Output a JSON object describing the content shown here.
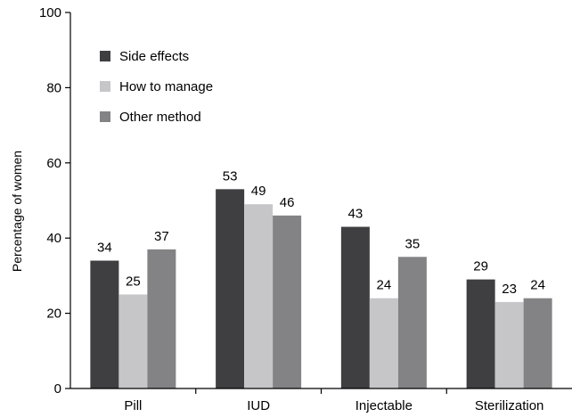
{
  "chart_data": {
    "type": "bar",
    "title": "",
    "xlabel": "",
    "ylabel": "Percentage of women",
    "ylim": [
      0,
      100
    ],
    "yticks": [
      0,
      20,
      40,
      60,
      80,
      100
    ],
    "grid": false,
    "legend_position": "top-left",
    "categories": [
      "Pill",
      "IUD",
      "Injectable",
      "Sterilization"
    ],
    "series": [
      {
        "name": "Side effects",
        "color": "#3f3f42",
        "values": [
          34,
          53,
          43,
          29
        ]
      },
      {
        "name": "How to manage",
        "color": "#c6c6c8",
        "values": [
          25,
          49,
          24,
          23
        ]
      },
      {
        "name": "Other method",
        "color": "#838385",
        "values": [
          37,
          46,
          35,
          24
        ]
      }
    ],
    "data_labels": [
      [
        "34",
        "53",
        "43",
        "29"
      ],
      [
        "25",
        "49",
        "24",
        "23"
      ],
      [
        "37",
        "46",
        "35",
        "24"
      ]
    ]
  }
}
